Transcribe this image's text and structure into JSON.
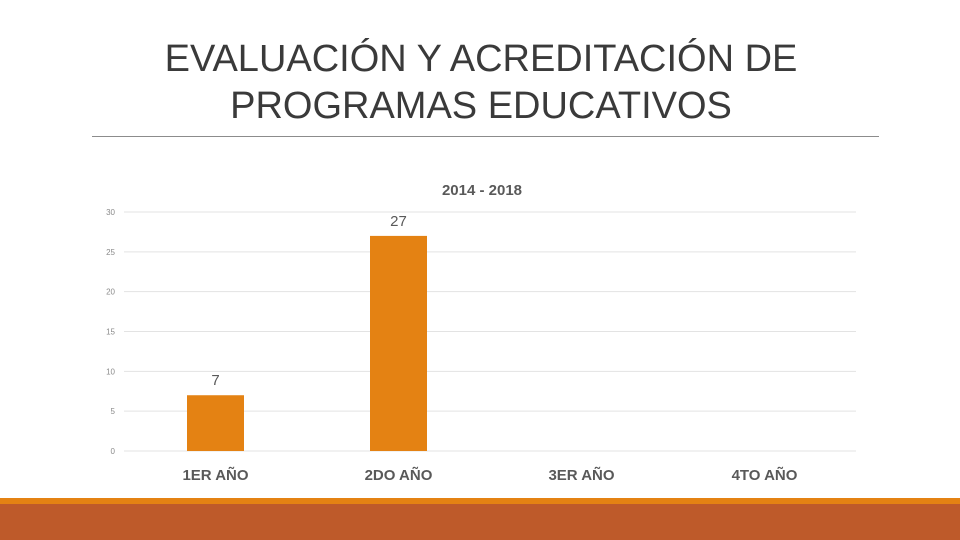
{
  "slide": {
    "title_line1": "EVALUACIÓN Y ACREDITACIÓN DE",
    "title_line2": "PROGRAMAS EDUCATIVOS"
  },
  "colors": {
    "bar": "#E48213",
    "band_thin": "#E48213",
    "band_thick": "#BE5A2A",
    "grid": "#e3e3e3",
    "title_text": "#3a3a3a",
    "chart_text": "#595959"
  },
  "chart_data": {
    "type": "bar",
    "title": "2014 - 2018",
    "categories": [
      "1ER AÑO",
      "2DO AÑO",
      "3ER AÑO",
      "4TO AÑO"
    ],
    "values": [
      7,
      27,
      null,
      null
    ],
    "data_labels": [
      "7",
      "27",
      "",
      ""
    ],
    "ylim": [
      0,
      30
    ],
    "yticks": [
      0,
      5,
      10,
      15,
      20,
      25,
      30
    ],
    "grid": true,
    "legend": "none"
  }
}
